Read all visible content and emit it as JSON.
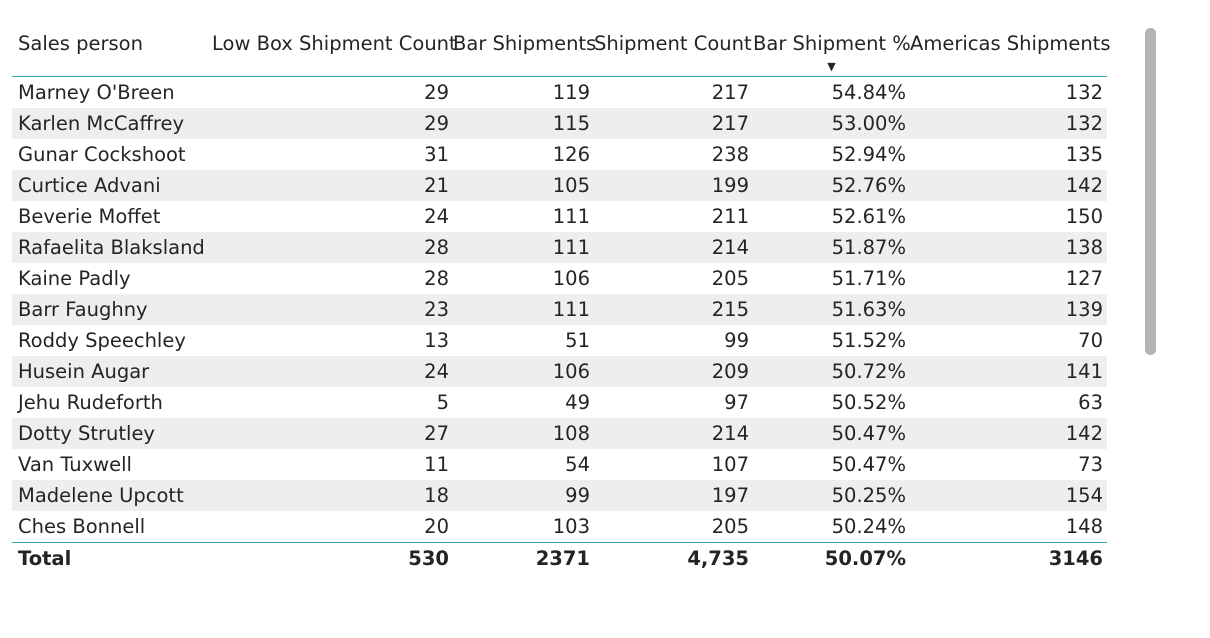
{
  "table": {
    "headers": [
      "Sales person",
      "Low Box Shipment Count",
      "Bar Shipments",
      "Shipment Count",
      "Bar Shipment %",
      "Americas Shipments"
    ],
    "sorted_column_index": 4,
    "sort_direction": "descending",
    "rows": [
      [
        "Marney O'Breen",
        "29",
        "119",
        "217",
        "54.84%",
        "132"
      ],
      [
        "Karlen McCaffrey",
        "29",
        "115",
        "217",
        "53.00%",
        "132"
      ],
      [
        "Gunar Cockshoot",
        "31",
        "126",
        "238",
        "52.94%",
        "135"
      ],
      [
        "Curtice Advani",
        "21",
        "105",
        "199",
        "52.76%",
        "142"
      ],
      [
        "Beverie Moffet",
        "24",
        "111",
        "211",
        "52.61%",
        "150"
      ],
      [
        "Rafaelita Blaksland",
        "28",
        "111",
        "214",
        "51.87%",
        "138"
      ],
      [
        "Kaine Padly",
        "28",
        "106",
        "205",
        "51.71%",
        "127"
      ],
      [
        "Barr Faughny",
        "23",
        "111",
        "215",
        "51.63%",
        "139"
      ],
      [
        "Roddy Speechley",
        "13",
        "51",
        "99",
        "51.52%",
        "70"
      ],
      [
        "Husein Augar",
        "24",
        "106",
        "209",
        "50.72%",
        "141"
      ],
      [
        "Jehu Rudeforth",
        "5",
        "49",
        "97",
        "50.52%",
        "63"
      ],
      [
        "Dotty Strutley",
        "27",
        "108",
        "214",
        "50.47%",
        "142"
      ],
      [
        "Van Tuxwell",
        "11",
        "54",
        "107",
        "50.47%",
        "73"
      ],
      [
        "Madelene Upcott",
        "18",
        "99",
        "197",
        "50.25%",
        "154"
      ],
      [
        "Ches Bonnell",
        "20",
        "103",
        "205",
        "50.24%",
        "148"
      ]
    ],
    "total": [
      "Total",
      "530",
      "2371",
      "4,735",
      "50.07%",
      "3146"
    ]
  },
  "colors": {
    "header_rule": "#41a4c2",
    "band_row": "#eeeeee",
    "scrollbar": "#b3b3b3",
    "text": "#252423"
  },
  "icons": {
    "sort": "sort-descending-icon"
  }
}
